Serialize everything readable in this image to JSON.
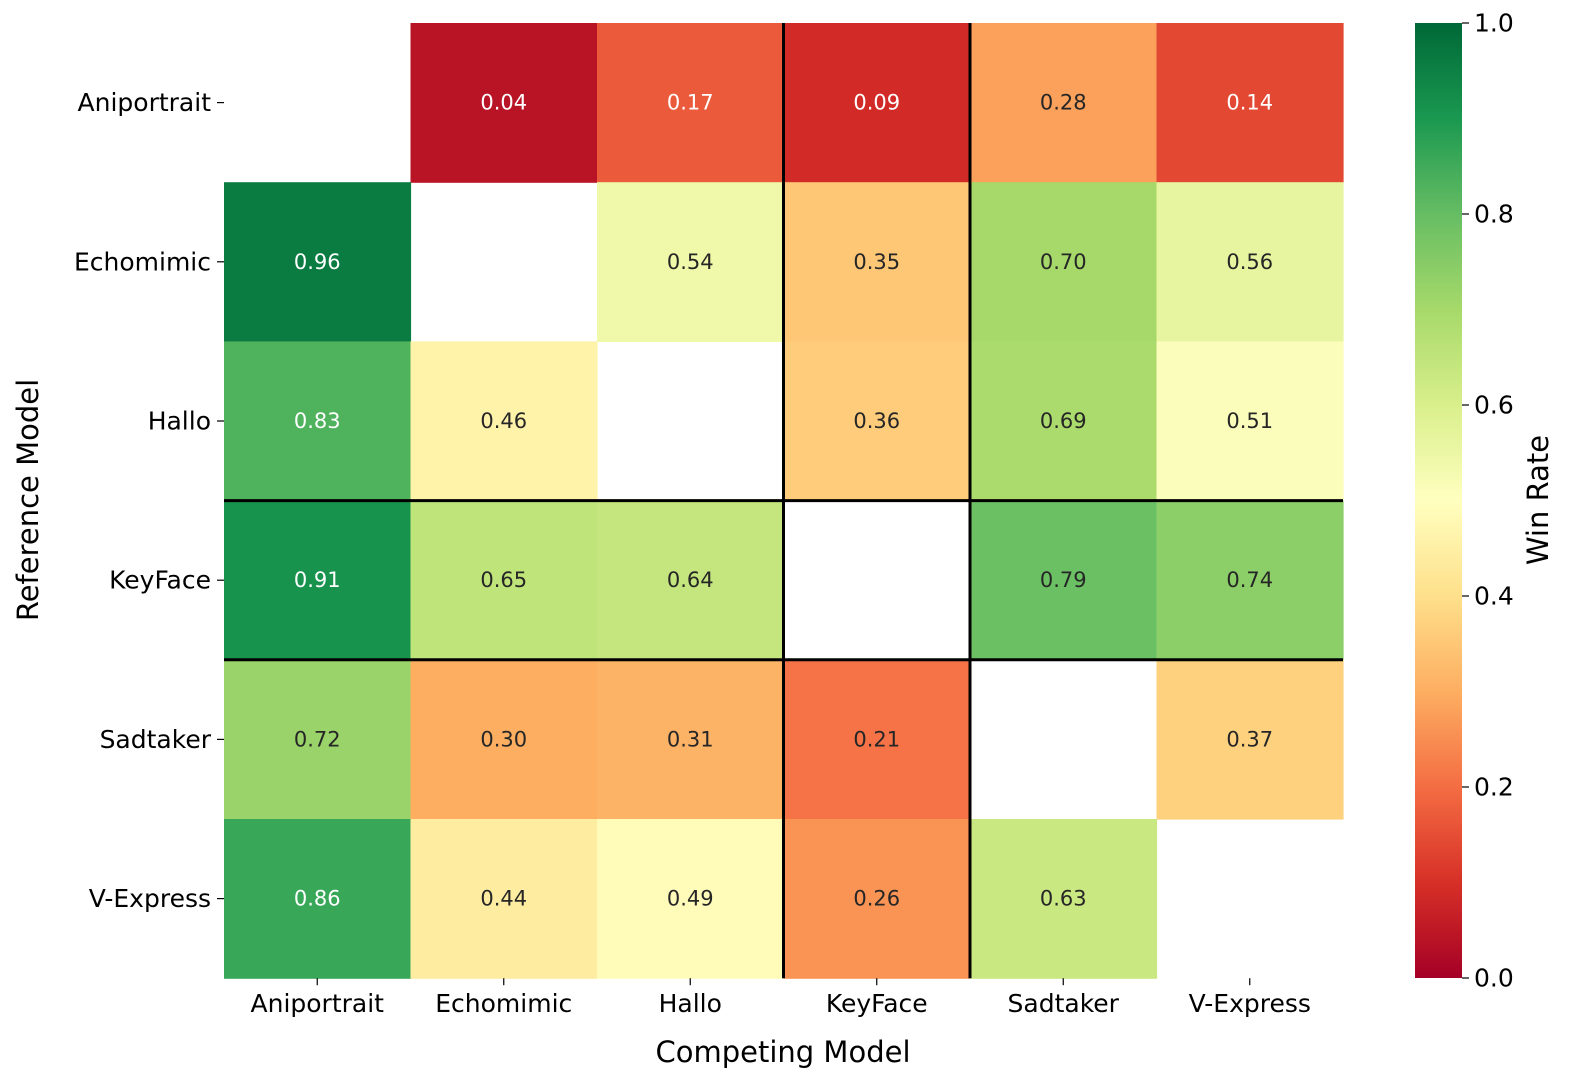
{
  "chart_data": {
    "type": "heatmap",
    "xlabel": "Competing Model",
    "ylabel": "Reference Model",
    "x_categories": [
      "Aniportrait",
      "Echomimic",
      "Hallo",
      "KeyFace",
      "Sadtaker",
      "V-Express"
    ],
    "y_categories": [
      "Aniportrait",
      "Echomimic",
      "Hallo",
      "KeyFace",
      "Sadtaker",
      "V-Express"
    ],
    "values": [
      [
        null,
        0.04,
        0.17,
        0.09,
        0.28,
        0.14
      ],
      [
        0.96,
        null,
        0.54,
        0.35,
        0.7,
        0.56
      ],
      [
        0.83,
        0.46,
        null,
        0.36,
        0.69,
        0.51
      ],
      [
        0.91,
        0.65,
        0.64,
        null,
        0.79,
        0.74
      ],
      [
        0.72,
        0.3,
        0.31,
        0.21,
        null,
        0.37
      ],
      [
        0.86,
        0.44,
        0.49,
        0.26,
        0.63,
        null
      ]
    ],
    "value_format": "0.00",
    "colormap": "RdYlGn",
    "vmin": 0.0,
    "vmax": 1.0,
    "colorbar": {
      "label": "Win Rate",
      "ticks": [
        "0.0",
        "0.2",
        "0.4",
        "0.6",
        "0.8",
        "1.0"
      ]
    },
    "highlight_lines": {
      "vertical_before_columns": [
        "KeyFace",
        "Sadtaker"
      ],
      "horizontal_around_row": "KeyFace"
    }
  }
}
